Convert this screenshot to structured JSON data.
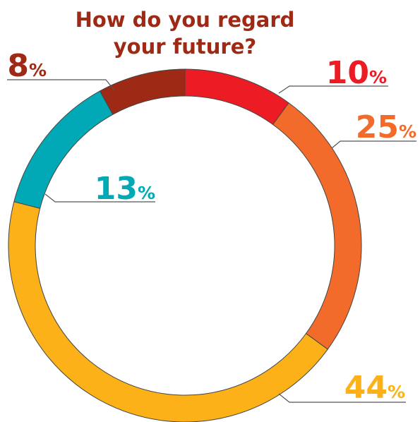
{
  "chart_data": {
    "type": "donut",
    "title": [
      "How do you regard",
      "your future?"
    ],
    "values": [
      10,
      25,
      44,
      13,
      8
    ],
    "value_labels": [
      "10%",
      "25%",
      "44%",
      "13%",
      "8%"
    ],
    "colors": [
      "#ed1c24",
      "#f26b2a",
      "#fbb117",
      "#00a9b5",
      "#9e2a16"
    ]
  }
}
